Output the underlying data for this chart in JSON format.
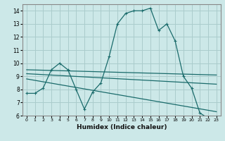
{
  "xlabel": "Humidex (Indice chaleur)",
  "background_color": "#cce8e8",
  "grid_color": "#aacccc",
  "line_color": "#1a6b6b",
  "xlim": [
    -0.5,
    23.5
  ],
  "ylim": [
    6,
    14.5
  ],
  "yticks": [
    6,
    7,
    8,
    9,
    10,
    11,
    12,
    13,
    14
  ],
  "xticks": [
    0,
    1,
    2,
    3,
    4,
    5,
    6,
    7,
    8,
    9,
    10,
    11,
    12,
    13,
    14,
    15,
    16,
    17,
    18,
    19,
    20,
    21,
    22,
    23
  ],
  "lines": [
    {
      "x": [
        0,
        1,
        2,
        3,
        4,
        5,
        6,
        7,
        8,
        9,
        10,
        11,
        12,
        13,
        14,
        15,
        16,
        17,
        18,
        19,
        20,
        21,
        22,
        23
      ],
      "y": [
        7.7,
        7.7,
        8.1,
        9.5,
        10.0,
        9.5,
        8.0,
        6.5,
        7.8,
        8.5,
        10.5,
        13.0,
        13.8,
        14.0,
        14.0,
        14.2,
        12.5,
        13.0,
        11.7,
        9.0,
        8.1,
        6.2,
        5.8,
        5.9
      ],
      "marker": "+"
    },
    {
      "x": [
        0,
        23
      ],
      "y": [
        9.5,
        9.1
      ],
      "marker": null
    },
    {
      "x": [
        0,
        23
      ],
      "y": [
        9.2,
        8.4
      ],
      "marker": null
    },
    {
      "x": [
        0,
        23
      ],
      "y": [
        8.8,
        6.3
      ],
      "marker": null
    }
  ]
}
